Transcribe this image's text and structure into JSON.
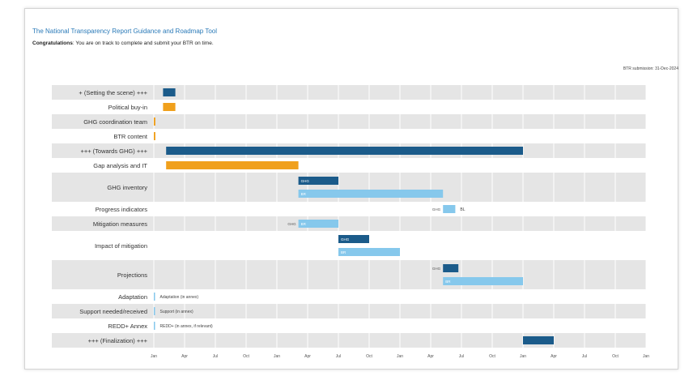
{
  "header": {
    "title": "The National Transparency Report Guidance and Roadmap Tool",
    "subtitle_strong": "Congratulations",
    "subtitle_rest": ": You are on track to complete and submit your BTR on time.",
    "date_note": "BTR submission: 31-Dec-2024"
  },
  "chart_data": {
    "type": "gantt",
    "categories": [
      "+ (Setting the scene) +++",
      "Political buy-in",
      "GHG coordination team",
      "BTR content",
      "+++ (Towards GHG) +++",
      "Gap analysis and IT",
      "GHG inventory",
      "Progress indicators",
      "Mitigation measures",
      "Impact of mitigation",
      "Projections",
      "Adaptation",
      "Support needed/received",
      "REDD+ Annex",
      "+++ (Finalization) +++"
    ],
    "x_ticks": [
      "Jan",
      "Apr",
      "Jul",
      "Oct",
      "Jan",
      "Apr",
      "Jul",
      "Oct",
      "Jan",
      "Apr",
      "Jul",
      "Oct",
      "Jan",
      "Apr",
      "Jul",
      "Oct",
      "Jan"
    ],
    "series": [
      {
        "task": 0,
        "start": 0.3,
        "end": 0.7,
        "color": "#1b5b8a"
      },
      {
        "task": 1,
        "start": 0.3,
        "end": 0.7,
        "color": "#f0a01c"
      },
      {
        "task": 2,
        "start": 0.0,
        "end": 0.05,
        "color": "#f0a01c"
      },
      {
        "task": 3,
        "start": 0.0,
        "end": 0.05,
        "color": "#f0a01c"
      },
      {
        "task": 4,
        "start": 0.4,
        "end": 12.0,
        "color": "#1b5b8a"
      },
      {
        "task": 5,
        "start": 0.4,
        "end": 4.7,
        "color": "#f0a01c"
      },
      {
        "task": 6,
        "start": 4.7,
        "end": 6.0,
        "color": "#1b5b8a",
        "lane": "top",
        "label": "GHG"
      },
      {
        "task": 6,
        "start": 4.7,
        "end": 9.4,
        "color": "#86c8ec",
        "lane": "bottom",
        "label": "BR"
      },
      {
        "task": 7,
        "start": 9.4,
        "end": 9.8,
        "color": "#86c8ec",
        "pre": "GHG",
        "post": "BL"
      },
      {
        "task": 8,
        "start": 4.7,
        "end": 6.0,
        "color": "#86c8ec",
        "pre": "GHG",
        "label": "BR"
      },
      {
        "task": 9,
        "start": 6.0,
        "end": 7.0,
        "color": "#1b5b8a",
        "lane": "top",
        "label": "GHG"
      },
      {
        "task": 9,
        "start": 6.0,
        "end": 8.0,
        "color": "#86c8ec",
        "lane": "bottom",
        "label": "BR"
      },
      {
        "task": 10,
        "start": 9.4,
        "end": 9.9,
        "color": "#1b5b8a",
        "lane": "top",
        "pre": "GHG"
      },
      {
        "task": 10,
        "start": 9.4,
        "end": 12.0,
        "color": "#86c8ec",
        "lane": "bottom",
        "label": "BR"
      },
      {
        "task": 11,
        "start": 0.0,
        "end": 0.04,
        "color": "#86c8ec",
        "post": "Adaptation (in annex)"
      },
      {
        "task": 12,
        "start": 0.0,
        "end": 0.04,
        "color": "#86c8ec",
        "post": "Support (in annex)"
      },
      {
        "task": 13,
        "start": 0.0,
        "end": 0.04,
        "color": "#86c8ec",
        "post": "REDD+ (in annex, if relevant)"
      },
      {
        "task": 14,
        "start": 12.0,
        "end": 13.0,
        "color": "#1b5b8a"
      }
    ],
    "row_types": [
      "single",
      "single",
      "single",
      "single",
      "single",
      "single",
      "double",
      "single",
      "single",
      "double",
      "double",
      "single",
      "single",
      "single",
      "single"
    ],
    "shaded_rows": [
      0,
      2,
      4,
      6,
      8,
      10,
      12,
      14
    ],
    "xlim": [
      0,
      16
    ],
    "grid": true,
    "legend": "none"
  }
}
